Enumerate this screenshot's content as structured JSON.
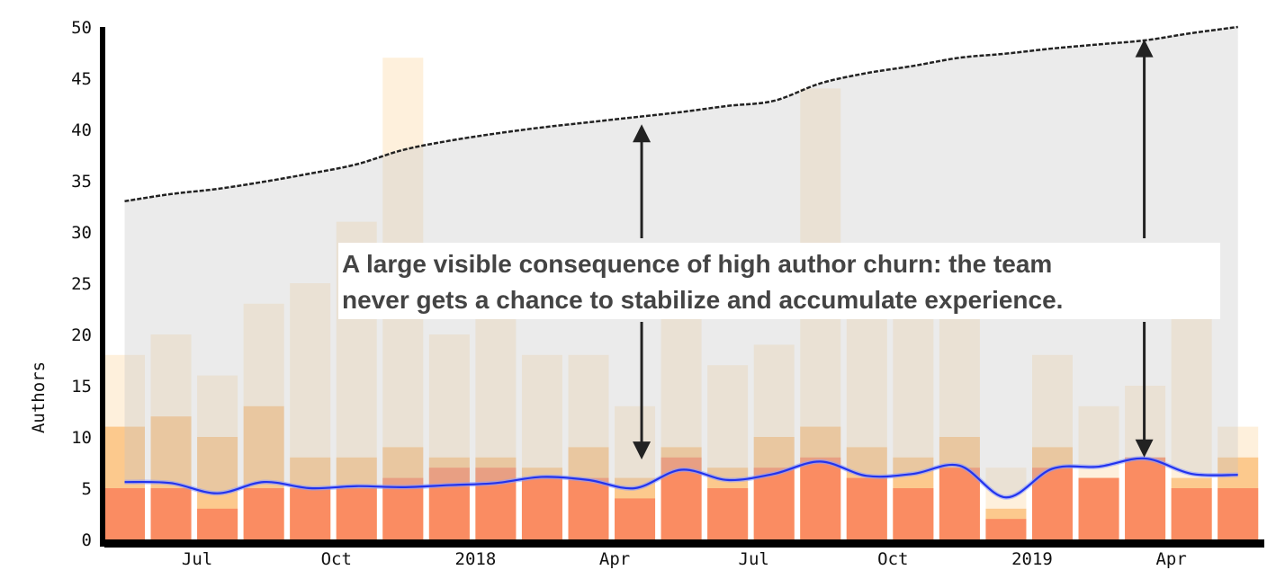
{
  "chart_data": {
    "type": "bar",
    "title": "",
    "xlabel": "",
    "ylabel": "Authors",
    "ylim": [
      0,
      50
    ],
    "yticks": [
      "0",
      "5",
      "10",
      "15",
      "20",
      "25",
      "30",
      "35",
      "40",
      "45",
      "50"
    ],
    "grid": false,
    "categories": [
      "2017-05",
      "2017-06",
      "2017-07",
      "2017-08",
      "2017-09",
      "2017-10",
      "2017-11",
      "2017-12",
      "2018-01",
      "2018-02",
      "2018-03",
      "2018-04",
      "2018-05",
      "2018-06",
      "2018-07",
      "2018-08",
      "2018-09",
      "2018-10",
      "2018-11",
      "2018-12",
      "2019-01",
      "2019-02",
      "2019-03",
      "2019-04",
      "2019-05"
    ],
    "xtick_labels": [
      {
        "month": "2017-07",
        "label": "Jul"
      },
      {
        "month": "2017-10",
        "label": "Oct"
      },
      {
        "month": "2018-01",
        "label": "2018"
      },
      {
        "month": "2018-04",
        "label": "Apr"
      },
      {
        "month": "2018-07",
        "label": "Jul"
      },
      {
        "month": "2018-10",
        "label": "Oct"
      },
      {
        "month": "2019-01",
        "label": "2019"
      },
      {
        "month": "2019-04",
        "label": "Apr"
      }
    ],
    "bar_series": [
      {
        "color": "#fef0dc",
        "values": [
          18,
          20,
          16,
          23,
          25,
          31,
          47,
          20,
          25,
          18,
          18,
          13,
          22,
          17,
          19,
          44,
          24,
          23,
          22,
          7,
          18,
          13,
          15,
          22,
          11
        ]
      },
      {
        "color": "#fcc98d",
        "values": [
          11,
          12,
          10,
          13,
          8,
          8,
          9,
          8,
          8,
          7,
          9,
          6,
          9,
          7,
          10,
          11,
          9,
          8,
          10,
          3,
          9,
          6,
          8,
          6,
          8
        ]
      },
      {
        "color": "#fa8c62",
        "values": [
          5,
          5,
          3,
          5,
          5,
          5,
          6,
          7,
          7,
          6,
          6,
          4,
          8,
          5,
          7,
          8,
          6,
          5,
          7,
          2,
          7,
          6,
          8,
          5,
          5
        ]
      }
    ],
    "line_series": [
      {
        "color": "#2233ee",
        "style": "solid",
        "values": [
          5.6,
          5.5,
          4.5,
          5.6,
          5.0,
          5.2,
          5.1,
          5.3,
          5.5,
          6.1,
          5.8,
          5.0,
          6.8,
          5.8,
          6.4,
          7.6,
          6.2,
          6.4,
          7.2,
          4.1,
          6.9,
          7.1,
          7.9,
          6.4,
          6.3
        ]
      },
      {
        "color": "#222222",
        "style": "dashed",
        "values": [
          33.0,
          33.7,
          34.2,
          34.9,
          35.7,
          36.6,
          38.0,
          38.9,
          39.6,
          40.2,
          40.7,
          41.2,
          41.7,
          42.3,
          42.8,
          44.5,
          45.5,
          46.2,
          47.0,
          47.4,
          47.9,
          48.3,
          48.7,
          49.4,
          50.0
        ]
      }
    ],
    "band": {
      "color": "#c4c4c4",
      "between": "solid line and dashed line"
    },
    "annotation": {
      "lines": [
        "A large visible consequence of high author churn: the team",
        "never gets a chance to stabilize and accumulate experience."
      ],
      "arrows": [
        {
          "month": "2018-04",
          "up_to": 40.5,
          "down_to": 7.8
        },
        {
          "month": "2019-03",
          "up_to": 48.8,
          "down_to": 8.0
        }
      ]
    }
  }
}
